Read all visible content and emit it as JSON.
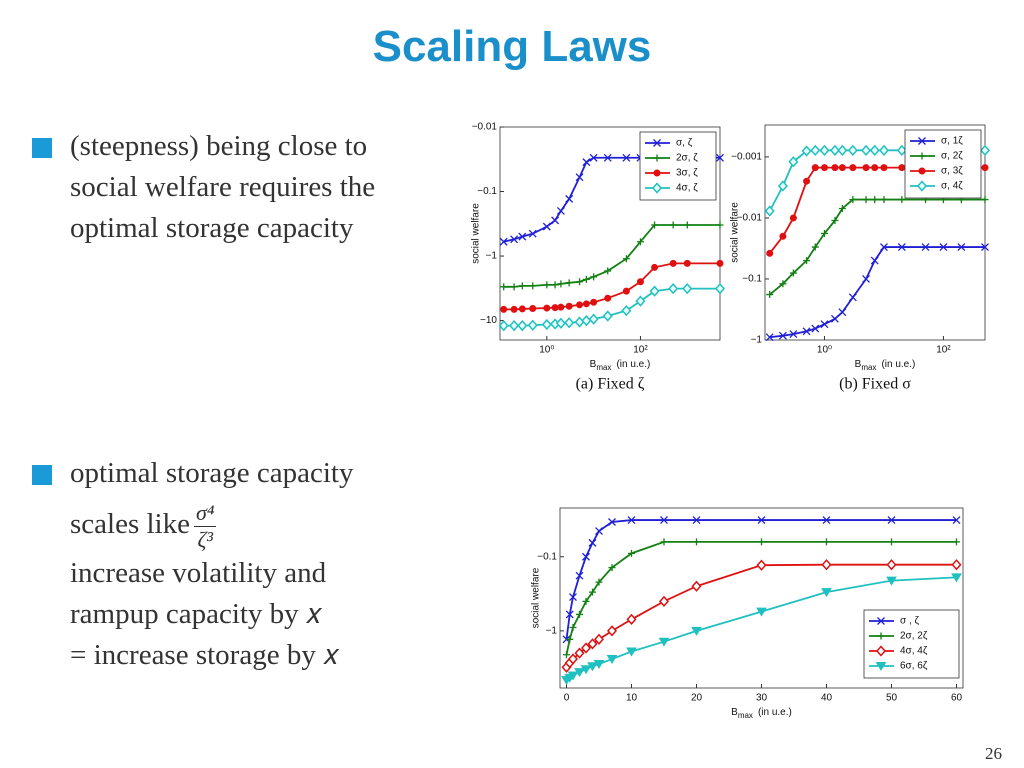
{
  "title": "Scaling Laws",
  "bullets": [
    {
      "lines": [
        "(steepness) being close to",
        "social welfare requires the",
        "optimal storage capacity"
      ]
    },
    {
      "lines": [
        "optimal storage capacity"
      ],
      "scales": "scales like",
      "numerator": "σ⁴",
      "denominator": "ζ³",
      "after": [
        "increase volatility and",
        "rampup capacity by 𝑥",
        "= increase storage by 𝑥"
      ]
    }
  ],
  "page_number": 26,
  "chart_data": [
    {
      "type": "line",
      "caption": "(a) Fixed ζ",
      "ylabel": "social welfare",
      "xlabel": {
        "text": "B",
        "sub": "max",
        "unit": "(in u.e.)"
      },
      "xscale": "log",
      "yscale": "log",
      "legend": "upper right",
      "xlim": [
        0.1,
        5000
      ],
      "ylim": [
        -20,
        -0.01
      ],
      "xticks": [
        {
          "value": 1,
          "label": "10⁰"
        },
        {
          "value": 100,
          "label": "10²"
        }
      ],
      "yticks": [
        {
          "value": -0.01,
          "label": "−0.01"
        },
        {
          "value": -0.1,
          "label": "−0.1"
        },
        {
          "value": -1,
          "label": "−1"
        },
        {
          "value": -10,
          "label": "−10"
        }
      ],
      "x": [
        0.12,
        0.2,
        0.3,
        0.5,
        1,
        1.5,
        2,
        3,
        5,
        7,
        10,
        20,
        50,
        100,
        200,
        500,
        1000,
        5000
      ],
      "series": [
        {
          "name": "σ,  ζ",
          "color": "#1f1fd6",
          "marker": "x",
          "values": [
            -0.6,
            -0.55,
            -0.5,
            -0.45,
            -0.35,
            -0.28,
            -0.2,
            -0.13,
            -0.06,
            -0.035,
            -0.03,
            -0.03,
            -0.03,
            -0.03,
            -0.03,
            -0.03,
            -0.03,
            -0.03
          ]
        },
        {
          "name": "2σ,  ζ",
          "color": "#128012",
          "marker": "+",
          "values": [
            -3,
            -3,
            -2.9,
            -2.9,
            -2.8,
            -2.8,
            -2.7,
            -2.6,
            -2.5,
            -2.3,
            -2.1,
            -1.7,
            -1.1,
            -0.6,
            -0.33,
            -0.33,
            -0.33,
            -0.33
          ]
        },
        {
          "name": "3σ,  ζ",
          "color": "#e01010",
          "marker": "o",
          "values": [
            -6.7,
            -6.7,
            -6.6,
            -6.5,
            -6.4,
            -6.3,
            -6.2,
            -6,
            -5.7,
            -5.5,
            -5.2,
            -4.5,
            -3.5,
            -2.5,
            -1.5,
            -1.3,
            -1.3,
            -1.3
          ]
        },
        {
          "name": "4σ,  ζ",
          "color": "#20c0c0",
          "marker": "d",
          "values": [
            -12,
            -12,
            -12,
            -11.8,
            -11.5,
            -11.3,
            -11,
            -10.8,
            -10.5,
            -10,
            -9.5,
            -8.5,
            -7,
            -5,
            -3.5,
            -3.2,
            -3.2,
            -3.2
          ]
        }
      ]
    },
    {
      "type": "line",
      "caption": "(b) Fixed σ",
      "ylabel": "social welfare",
      "xlabel": {
        "text": "B",
        "sub": "max",
        "unit": "(in u.e.)"
      },
      "xscale": "log",
      "yscale": "log",
      "legend": "upper right",
      "xlim": [
        0.1,
        500
      ],
      "ylim": [
        -1,
        -0.0003
      ],
      "xticks": [
        {
          "value": 1,
          "label": "10⁰"
        },
        {
          "value": 100,
          "label": "10²"
        }
      ],
      "yticks": [
        {
          "value": -0.001,
          "label": "−0.001"
        },
        {
          "value": -0.01,
          "label": "−0.01"
        },
        {
          "value": -0.1,
          "label": "−0.1"
        },
        {
          "value": -1,
          "label": "−1"
        }
      ],
      "x": [
        0.12,
        0.2,
        0.3,
        0.5,
        0.7,
        1,
        1.5,
        2,
        3,
        5,
        7,
        10,
        20,
        50,
        100,
        200,
        500
      ],
      "series": [
        {
          "name": "σ, 1ζ",
          "color": "#1f1fd6",
          "marker": "x",
          "values": [
            -0.9,
            -0.85,
            -0.8,
            -0.72,
            -0.65,
            -0.55,
            -0.45,
            -0.35,
            -0.2,
            -0.1,
            -0.05,
            -0.03,
            -0.03,
            -0.03,
            -0.03,
            -0.03,
            -0.03
          ]
        },
        {
          "name": "σ, 2ζ",
          "color": "#128012",
          "marker": "+",
          "values": [
            -0.18,
            -0.12,
            -0.08,
            -0.05,
            -0.03,
            -0.018,
            -0.011,
            -0.007,
            -0.005,
            -0.005,
            -0.005,
            -0.005,
            -0.005,
            -0.005,
            -0.005,
            -0.005,
            -0.005
          ]
        },
        {
          "name": "σ, 3ζ",
          "color": "#e01010",
          "marker": "o",
          "values": [
            -0.038,
            -0.02,
            -0.01,
            -0.0025,
            -0.0015,
            -0.0015,
            -0.0015,
            -0.0015,
            -0.0015,
            -0.0015,
            -0.0015,
            -0.0015,
            -0.0015,
            -0.0015,
            -0.0015,
            -0.0015,
            -0.0015
          ]
        },
        {
          "name": "σ, 4ζ",
          "color": "#20c0c0",
          "marker": "d",
          "values": [
            -0.0077,
            -0.003,
            -0.0012,
            -0.0008,
            -0.00078,
            -0.00078,
            -0.00078,
            -0.00078,
            -0.00078,
            -0.00078,
            -0.00078,
            -0.00078,
            -0.00078,
            -0.00078,
            -0.00078,
            -0.00078,
            -0.00078
          ]
        }
      ]
    },
    {
      "type": "line",
      "ylabel": "social welfare",
      "xlabel": {
        "text": "B",
        "sub": "max",
        "unit": "(in u.e.)"
      },
      "xscale": "linear",
      "yscale": "log",
      "legend": "lower right",
      "xlim": [
        -1,
        61
      ],
      "ylim": [
        -5.9,
        -0.022
      ],
      "xticks": [
        0,
        10,
        20,
        30,
        40,
        50,
        60
      ],
      "yticks": [
        {
          "value": -0.1,
          "label": "−0.1"
        },
        {
          "value": -1,
          "label": "−1"
        }
      ],
      "x": [
        0,
        0.5,
        1,
        2,
        3,
        4,
        5,
        7,
        10,
        15,
        20,
        30,
        40,
        50,
        60
      ],
      "series": [
        {
          "name": "σ ,  ζ",
          "color": "#1f1fd6",
          "marker": "x",
          "values": [
            -1.3,
            -0.6,
            -0.35,
            -0.18,
            -0.1,
            -0.065,
            -0.045,
            -0.034,
            -0.032,
            -0.032,
            -0.032,
            -0.032,
            -0.032,
            -0.032,
            -0.032
          ]
        },
        {
          "name": "2σ, 2ζ",
          "color": "#128012",
          "marker": "+",
          "values": [
            -2.1,
            -1.3,
            -0.9,
            -0.6,
            -0.4,
            -0.3,
            -0.22,
            -0.14,
            -0.09,
            -0.063,
            -0.063,
            -0.063,
            -0.063,
            -0.063,
            -0.063
          ]
        },
        {
          "name": "4σ, 4ζ",
          "color": "#e01010",
          "marker": "d",
          "values": [
            -3.1,
            -2.7,
            -2.4,
            -2,
            -1.7,
            -1.5,
            -1.3,
            -1,
            -0.7,
            -0.4,
            -0.25,
            -0.13,
            -0.128,
            -0.128,
            -0.128
          ]
        },
        {
          "name": "6σ, 6ζ",
          "color": "#20c0c0",
          "marker": "v",
          "values": [
            -4.6,
            -4.3,
            -4,
            -3.6,
            -3.3,
            -3,
            -2.8,
            -2.4,
            -1.9,
            -1.4,
            -1,
            -0.55,
            -0.3,
            -0.21,
            -0.19
          ]
        }
      ]
    }
  ]
}
